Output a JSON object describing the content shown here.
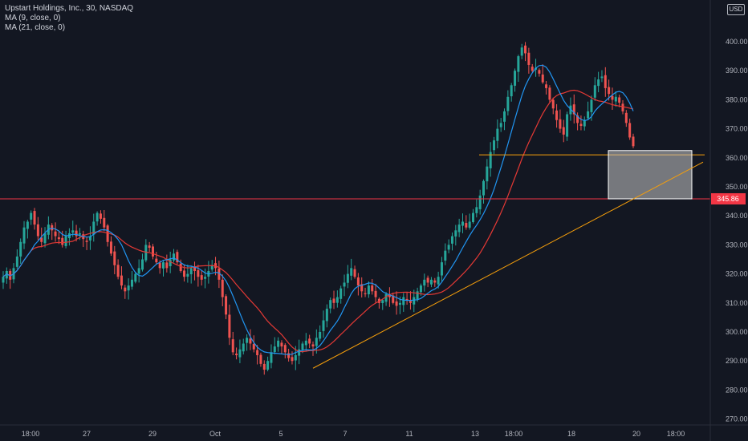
{
  "legend": {
    "title": "Upstart Holdings, Inc., 30, NASDAQ",
    "ma1": "MA (9, close, 0)",
    "ma2": "MA (21, close, 0)"
  },
  "currency": "USD",
  "colors": {
    "background": "#131722",
    "up": "#26a69a",
    "down": "#ef5350",
    "ma9": "#2196f3",
    "ma21": "#e53935",
    "trendline": "#f59e0b",
    "resistance": "#f23645",
    "grid_text": "#b2b5be"
  },
  "chart_data": {
    "type": "candlestick",
    "y_ticks": [
      "400.00",
      "390.00",
      "380.00",
      "370.00",
      "360.00",
      "350.00",
      "340.00",
      "330.00",
      "320.00",
      "310.00",
      "300.00",
      "290.00",
      "280.00",
      "270.00"
    ],
    "x_ticks": [
      "18:00",
      "27",
      "29",
      "Oct",
      "5",
      "7",
      "11",
      "13",
      "18:00",
      "18",
      "20",
      "18:00"
    ],
    "price_label": "345.86",
    "ylim": [
      266,
      412
    ],
    "resistance_level": 345.86,
    "support_level": 361,
    "zone": {
      "top": 362.5,
      "bottom": 345.86
    },
    "trendline": {
      "from_price": 287.5,
      "to_price": 358.5
    },
    "closes": [
      319,
      321,
      318,
      322,
      326,
      331,
      336,
      338,
      341,
      337,
      333,
      331,
      334,
      337,
      335,
      333,
      332,
      330,
      333,
      334,
      335,
      333,
      334,
      332,
      331,
      333,
      338,
      341,
      339,
      336,
      331,
      327,
      323,
      319,
      316,
      314,
      316,
      318,
      320,
      322,
      325,
      330,
      329,
      326,
      324,
      322,
      324,
      322,
      325,
      327,
      324,
      321,
      319,
      320,
      322,
      321,
      319,
      318,
      319,
      321,
      323,
      322,
      318,
      312,
      306,
      298,
      293,
      292,
      294,
      296,
      298,
      296,
      294,
      292,
      289,
      287,
      290,
      293,
      295,
      297,
      295,
      293,
      291,
      290,
      292,
      294,
      296,
      297,
      296,
      295,
      298,
      300,
      304,
      308,
      311,
      310,
      312,
      315,
      317,
      320,
      322,
      319,
      316,
      314,
      313,
      316,
      314,
      312,
      310,
      311,
      313,
      312,
      310,
      309,
      310,
      312,
      311,
      310,
      312,
      314,
      316,
      318,
      317,
      318,
      317,
      319,
      324,
      328,
      330,
      333,
      335,
      337,
      338,
      336,
      338,
      341,
      343,
      347,
      352,
      357,
      362,
      366,
      370,
      372,
      376,
      381,
      385,
      390,
      395,
      398,
      396,
      392,
      390,
      391,
      389,
      386,
      384,
      380,
      377,
      373,
      370,
      368,
      375,
      378,
      375,
      372,
      371,
      373,
      376,
      380,
      385,
      387,
      388,
      384,
      382,
      380,
      381,
      379,
      376,
      372,
      367,
      364
    ]
  }
}
